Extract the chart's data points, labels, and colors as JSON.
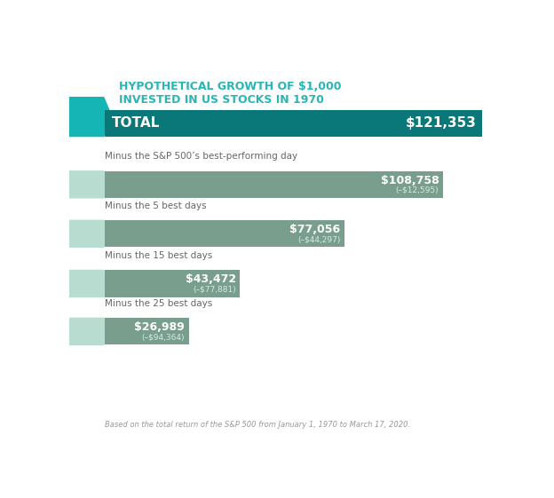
{
  "title_line1": "HYPOTHETICAL GROWTH OF $1,000",
  "title_line2": "INVESTED IN US STOCKS IN 1970",
  "title_color": "#2ab5b5",
  "footnote": "Based on the total return of the S&P 500 from January 1, 1970 to March 17, 2020.",
  "bars": [
    {
      "label": "TOTAL",
      "value": 121353,
      "display_value": "$121,353",
      "diff": "",
      "bar_color": "#0a7878",
      "text_color": "#ffffff",
      "is_total": true
    },
    {
      "label": "Minus the S&P 500’s best-performing day",
      "value": 108758,
      "display_value": "$108,758",
      "diff": "(–$12,595)",
      "bar_color": "#7a9e8e",
      "text_color": "#ffffff",
      "is_total": false
    },
    {
      "label": "Minus the 5 best days",
      "value": 77056,
      "display_value": "$77,056",
      "diff": "(–$44,297)",
      "bar_color": "#7a9e8e",
      "text_color": "#ffffff",
      "is_total": false
    },
    {
      "label": "Minus the 15 best days",
      "value": 43472,
      "display_value": "$43,472",
      "diff": "(–$77,881)",
      "bar_color": "#7a9e8e",
      "text_color": "#ffffff",
      "is_total": false
    },
    {
      "label": "Minus the 25 best days",
      "value": 26989,
      "display_value": "$26,989",
      "diff": "(–$94,364)",
      "bar_color": "#7a9e8e",
      "text_color": "#ffffff",
      "is_total": false
    }
  ],
  "max_value": 121353,
  "chevron_color_total": "#16b5b5",
  "chevron_color_light": "#b8ddd0",
  "background_color": "#ffffff",
  "fig_width": 6.24,
  "fig_height": 5.61,
  "dpi": 100
}
